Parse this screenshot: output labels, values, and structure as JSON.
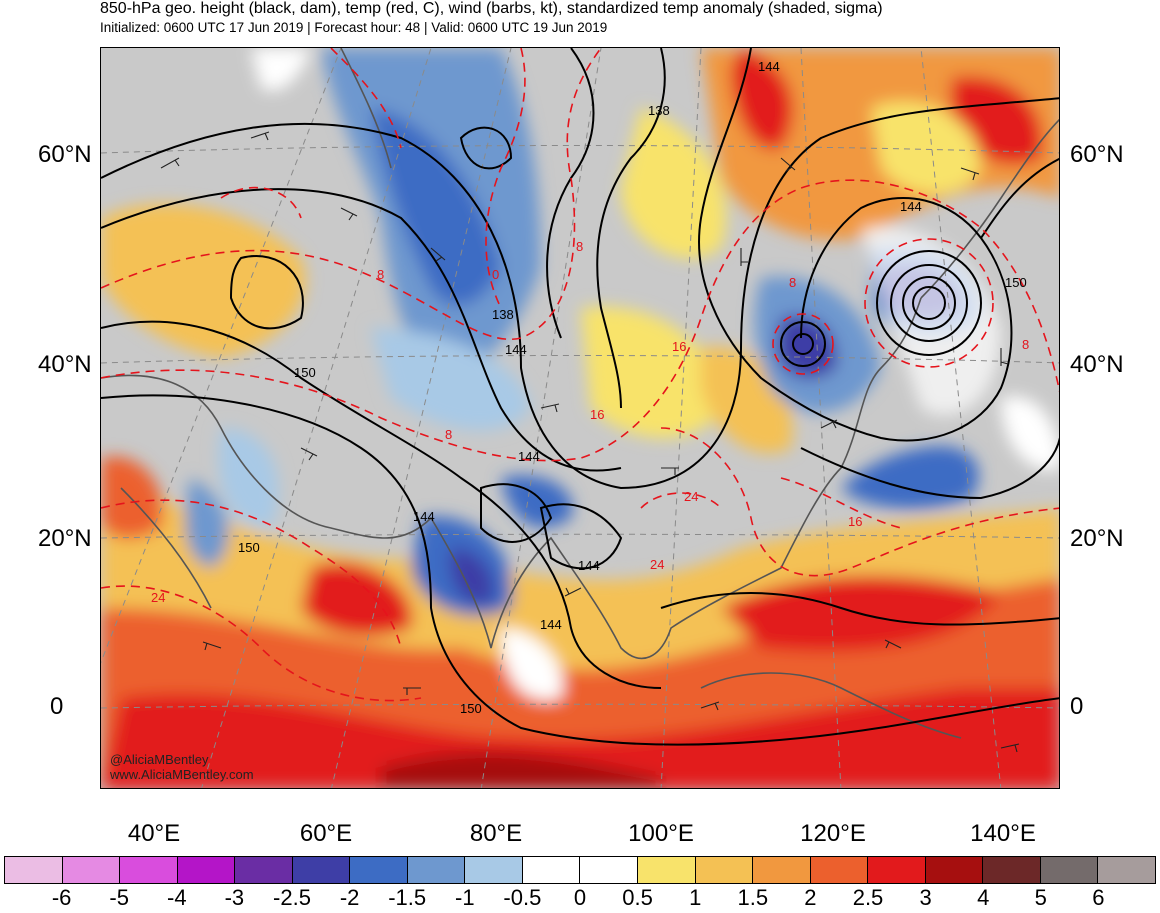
{
  "header": {
    "title": "850-hPa geo. height (black, dam), temp (red, C), wind (barbs, kt), standardized temp anomaly (shaded, sigma)",
    "subtitle": "Initialized: 0600 UTC 17 Jun 2019 | Forecast hour: 48 | Valid: 0600 UTC 19 Jun 2019"
  },
  "axes": {
    "lat_left": [
      "60°N",
      "40°N",
      "20°N",
      "0"
    ],
    "lat_right": [
      "60°N",
      "40°N",
      "20°N",
      "0"
    ],
    "lon": [
      "40°E",
      "60°E",
      "80°E",
      "100°E",
      "120°E",
      "140°E"
    ]
  },
  "contour_labels": {
    "height": [
      "144",
      "138",
      "144",
      "150",
      "138",
      "144",
      "150",
      "144",
      "144",
      "150",
      "144",
      "144",
      "150"
    ],
    "temperature": [
      "8",
      "8",
      "0",
      "8",
      "16",
      "8",
      "8",
      "16",
      "24",
      "24",
      "16",
      "24"
    ]
  },
  "credit": {
    "line1": "@AliciaMBentley",
    "line2": "www.AliciaMBentley.com"
  },
  "colorbar": {
    "ticks": [
      "-6",
      "-5",
      "-4",
      "-3",
      "-2.5",
      "-2",
      "-1.5",
      "-1",
      "-0.5",
      "0",
      "0.5",
      "1",
      "1.5",
      "2",
      "2.5",
      "3",
      "4",
      "5",
      "6"
    ],
    "colors": [
      "#ebbde4",
      "#e58ae3",
      "#d94ddd",
      "#b415c8",
      "#6a2da4",
      "#3e3ea6",
      "#3d6cc4",
      "#6e98cf",
      "#a8c9e6",
      "#ffffff",
      "#ffffff",
      "#f8e36b",
      "#f4c154",
      "#f1983f",
      "#ec602d",
      "#e21a1c",
      "#a60f0f",
      "#6c2828",
      "#746b6b",
      "#a69c9c"
    ]
  },
  "palette": {
    "land_grey": "#c9c9c9",
    "height_contour": "#000000",
    "temp_contour": "#e5141c"
  }
}
